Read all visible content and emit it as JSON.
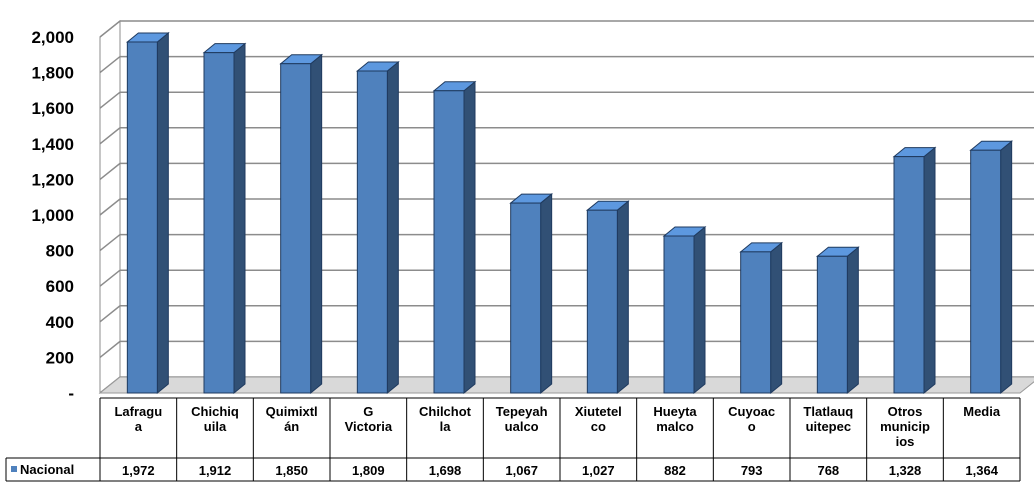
{
  "chart_data": {
    "type": "bar",
    "categories": [
      "Lafragua",
      "Chichiquila",
      "Quimixtlán",
      "G Victoria",
      "Chilchotla",
      "Tepeyahualco",
      "Xiutetelco",
      "Hueytamalco",
      "Cuyoaco",
      "Tlatlauquitepec",
      "Otros municipios",
      "Media"
    ],
    "category_label_lines": [
      [
        "Lafragu",
        "a"
      ],
      [
        "Chichiq",
        "uila"
      ],
      [
        "Quimixtl",
        "án"
      ],
      [
        "G",
        "Victoria"
      ],
      [
        "Chilchot",
        "la"
      ],
      [
        "Tepeyah",
        "ualco"
      ],
      [
        "Xiutetel",
        "co"
      ],
      [
        "Hueyta",
        "malco"
      ],
      [
        "Cuyoac",
        "o"
      ],
      [
        "Tlatlauq",
        "uitepec"
      ],
      [
        "Otros",
        "municip",
        "ios"
      ],
      [
        "Media"
      ]
    ],
    "series": [
      {
        "name": "Nacional",
        "values": [
          1972,
          1912,
          1850,
          1809,
          1698,
          1067,
          1027,
          882,
          793,
          768,
          1328,
          1364
        ],
        "value_labels": [
          "1,972",
          "1,912",
          "1,850",
          "1,809",
          "1,698",
          "1,067",
          "1,027",
          "882",
          "793",
          "768",
          "1,328",
          "1,364"
        ],
        "color": "#4F81BD"
      }
    ],
    "ylim": [
      0,
      2000
    ],
    "yticks": [
      0,
      200,
      400,
      600,
      800,
      1000,
      1200,
      1400,
      1600,
      1800,
      2000
    ],
    "ytick_labels": [
      "-",
      "200",
      "400",
      "600",
      "800",
      "1,000",
      "1,200",
      "1,400",
      "1,600",
      "1,800",
      "2,000"
    ],
    "grid": true,
    "three_d": true,
    "data_table": true,
    "legend": "data-table-left",
    "title": "",
    "xlabel": "",
    "ylabel": ""
  }
}
